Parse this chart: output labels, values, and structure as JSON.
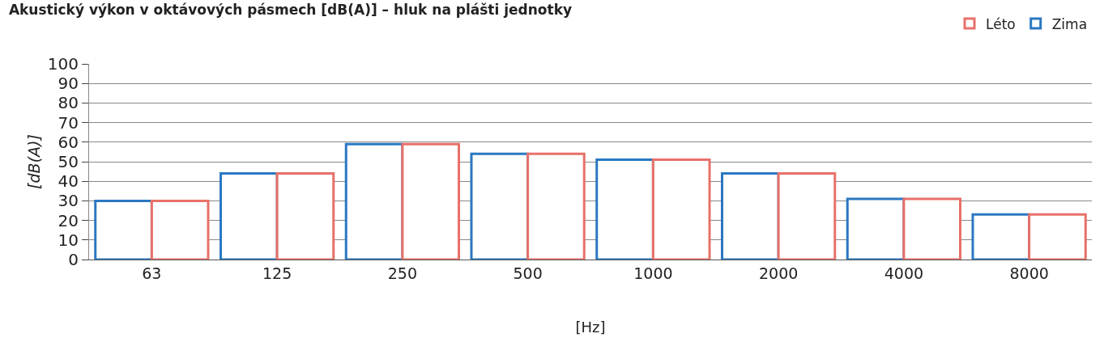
{
  "chart_data": {
    "type": "bar",
    "title": "Akustický výkon v oktávových pásmech [dB(A)] – hluk na plášti jednotky",
    "xlabel": "[Hz]",
    "ylabel": "[dB(A)]",
    "categories": [
      "63",
      "125",
      "250",
      "500",
      "1000",
      "2000",
      "4000",
      "8000"
    ],
    "series": [
      {
        "name": "Zima",
        "color": "#2a78c2",
        "values": [
          30,
          44,
          59,
          54,
          51,
          44,
          31,
          23
        ]
      },
      {
        "name": "Léto",
        "color": "#e8706a",
        "values": [
          30,
          44,
          59,
          54,
          51,
          44,
          31,
          23
        ]
      }
    ],
    "ylim": [
      0,
      100
    ],
    "yticks": [
      0,
      10,
      20,
      30,
      40,
      50,
      60,
      70,
      80,
      90,
      100
    ],
    "grid": "y",
    "legend": "top right"
  }
}
